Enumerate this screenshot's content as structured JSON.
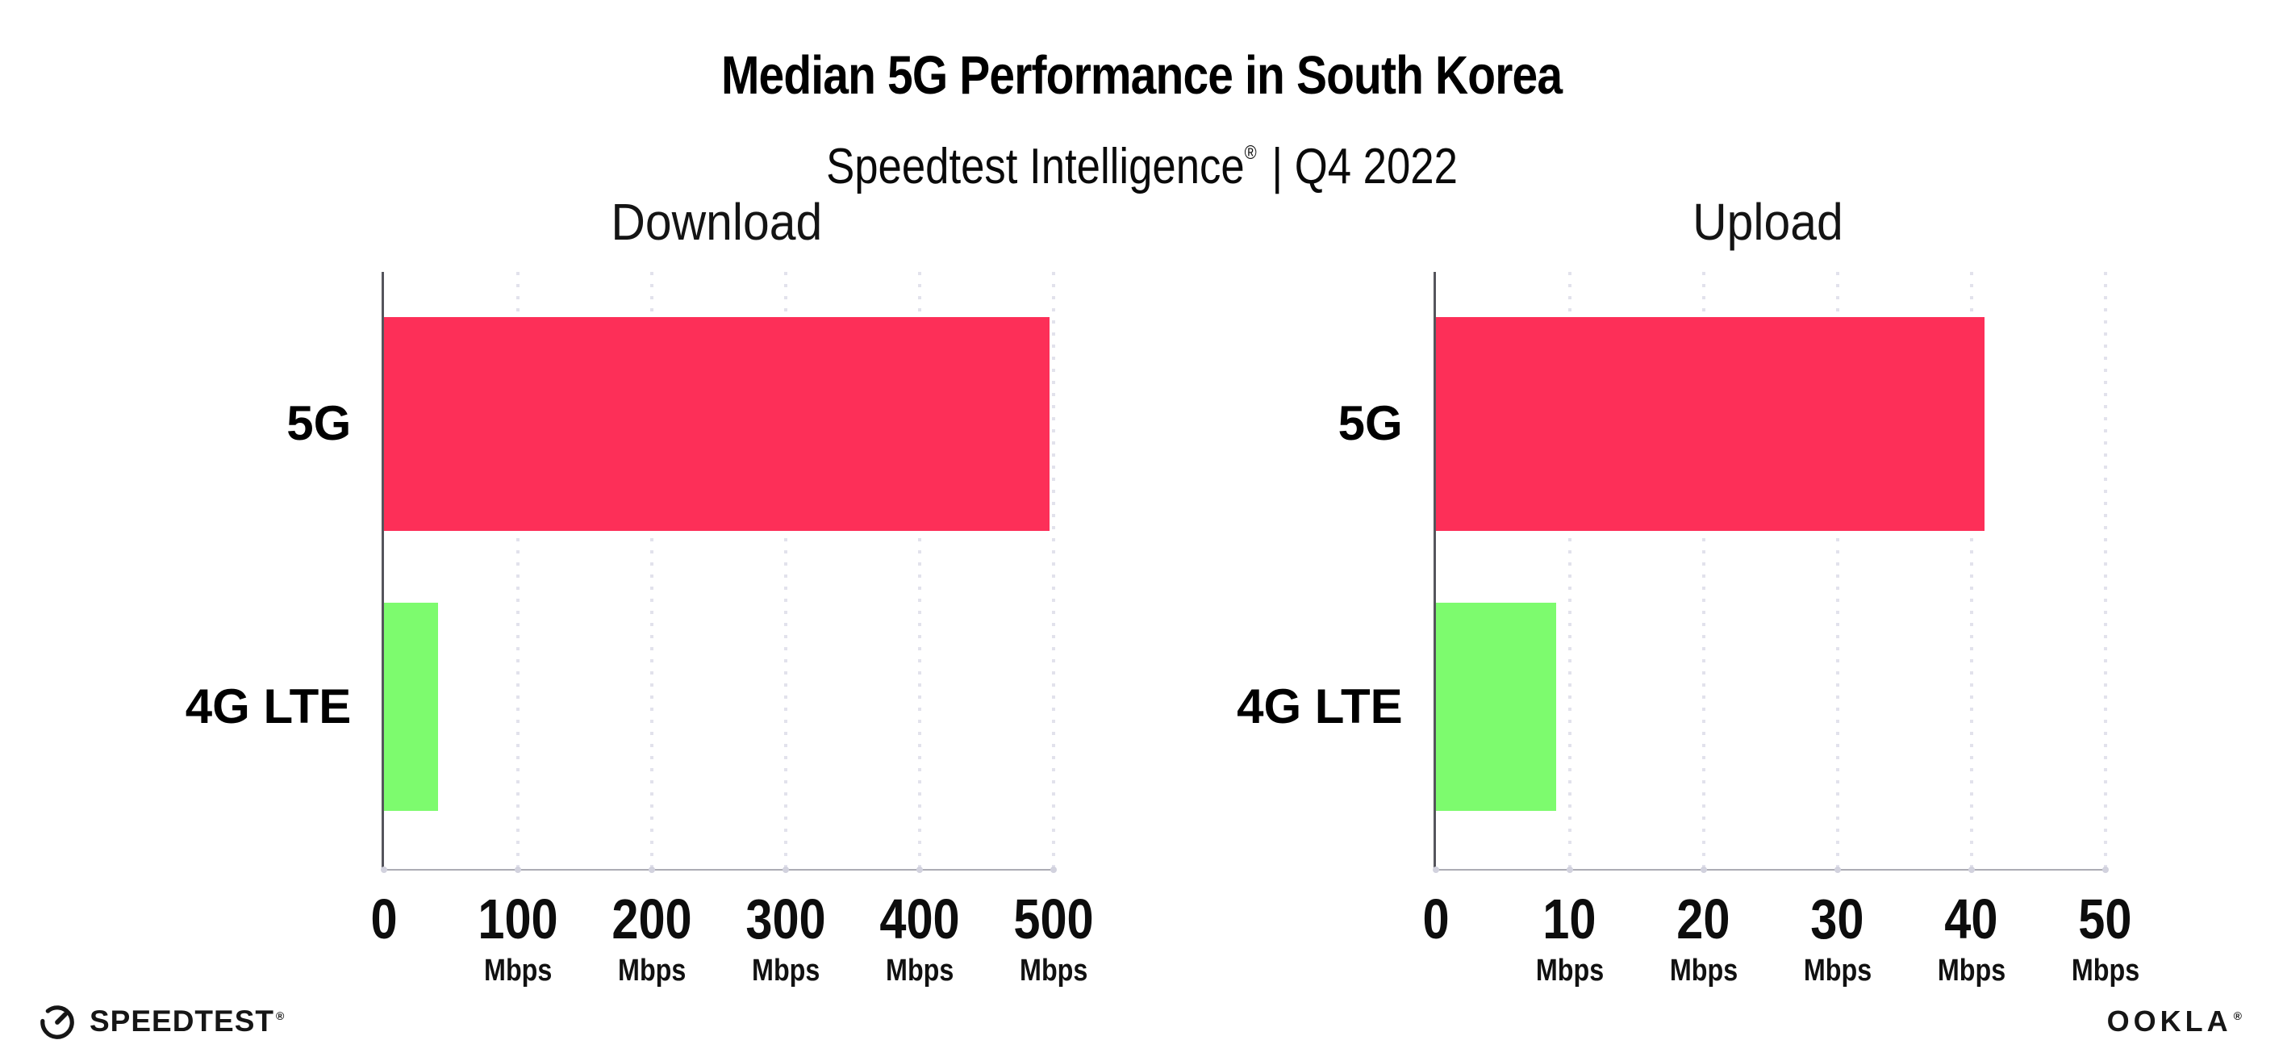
{
  "header": {
    "title": "Median 5G Performance in South Korea",
    "subtitle_brand": "Speedtest Intelligence",
    "reg": "®",
    "subtitle_rest": "| Q4 2022"
  },
  "chart_data": [
    {
      "type": "bar",
      "orientation": "horizontal",
      "title": "Download",
      "categories": [
        "5G",
        "4G LTE"
      ],
      "values": [
        497,
        40
      ],
      "unit": "Mbps",
      "xlim": [
        0,
        500
      ],
      "xticks": [
        0,
        100,
        200,
        300,
        400,
        500
      ],
      "tick_unit_label": "Mbps",
      "bar_colors": [
        "#FD2F58",
        "#7DFB6E"
      ],
      "grid": "dotted-vertical",
      "legend": "none"
    },
    {
      "type": "bar",
      "orientation": "horizontal",
      "title": "Upload",
      "categories": [
        "5G",
        "4G LTE"
      ],
      "values": [
        41,
        9
      ],
      "unit": "Mbps",
      "xlim": [
        0,
        50
      ],
      "xticks": [
        0,
        10,
        20,
        30,
        40,
        50
      ],
      "tick_unit_label": "Mbps",
      "bar_colors": [
        "#FD2F58",
        "#7DFB6E"
      ],
      "grid": "dotted-vertical",
      "legend": "none"
    }
  ],
  "footer": {
    "speedtest_label": "SPEEDTEST",
    "speedtest_reg": "®",
    "ookla_label": "OOKLA",
    "ookla_reg": "®"
  },
  "colors": {
    "bar_5g": "#FD2F58",
    "bar_4g_lte": "#7DFB6E",
    "gridline": "#E2E2EC",
    "x_axis_line": "#ACACB4",
    "y_axis_line": "#55555C",
    "text": "#0D0D0D",
    "background": "#FFFFFF"
  }
}
